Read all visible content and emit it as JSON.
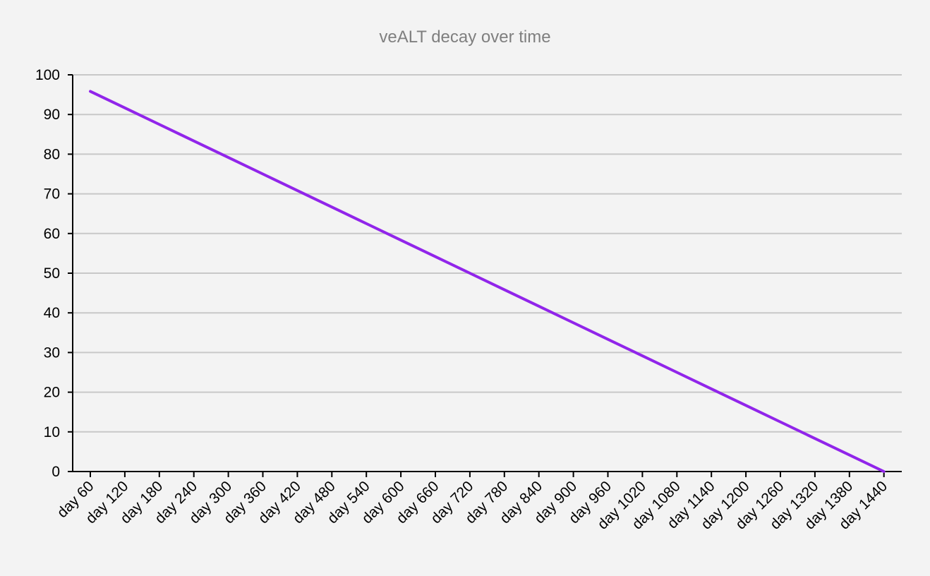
{
  "chart_data": {
    "type": "line",
    "title": "veALT decay over time",
    "xlabel": "",
    "ylabel": "",
    "categories": [
      "day 60",
      "day 120",
      "day 180",
      "day 240",
      "day 300",
      "day 360",
      "day 420",
      "day 480",
      "day 540",
      "day 600",
      "day 660",
      "day 720",
      "day 780",
      "day 840",
      "day 900",
      "day 960",
      "day 1020",
      "day 1080",
      "day 1140",
      "day 1200",
      "day 1260",
      "day 1320",
      "day 1380",
      "day 1440"
    ],
    "y_ticks": [
      "0",
      "10",
      "20",
      "30",
      "40",
      "50",
      "60",
      "70",
      "80",
      "90",
      "100"
    ],
    "ylim": [
      0,
      100
    ],
    "grid": true,
    "legend": "none",
    "series": [
      {
        "color": "#9125ea",
        "values": [
          95.83,
          91.67,
          87.5,
          83.33,
          79.17,
          75.0,
          70.83,
          66.67,
          62.5,
          58.33,
          54.17,
          50.0,
          45.83,
          41.67,
          37.5,
          33.33,
          29.17,
          25.0,
          20.83,
          16.67,
          12.5,
          8.33,
          4.17,
          0.0
        ]
      }
    ]
  }
}
